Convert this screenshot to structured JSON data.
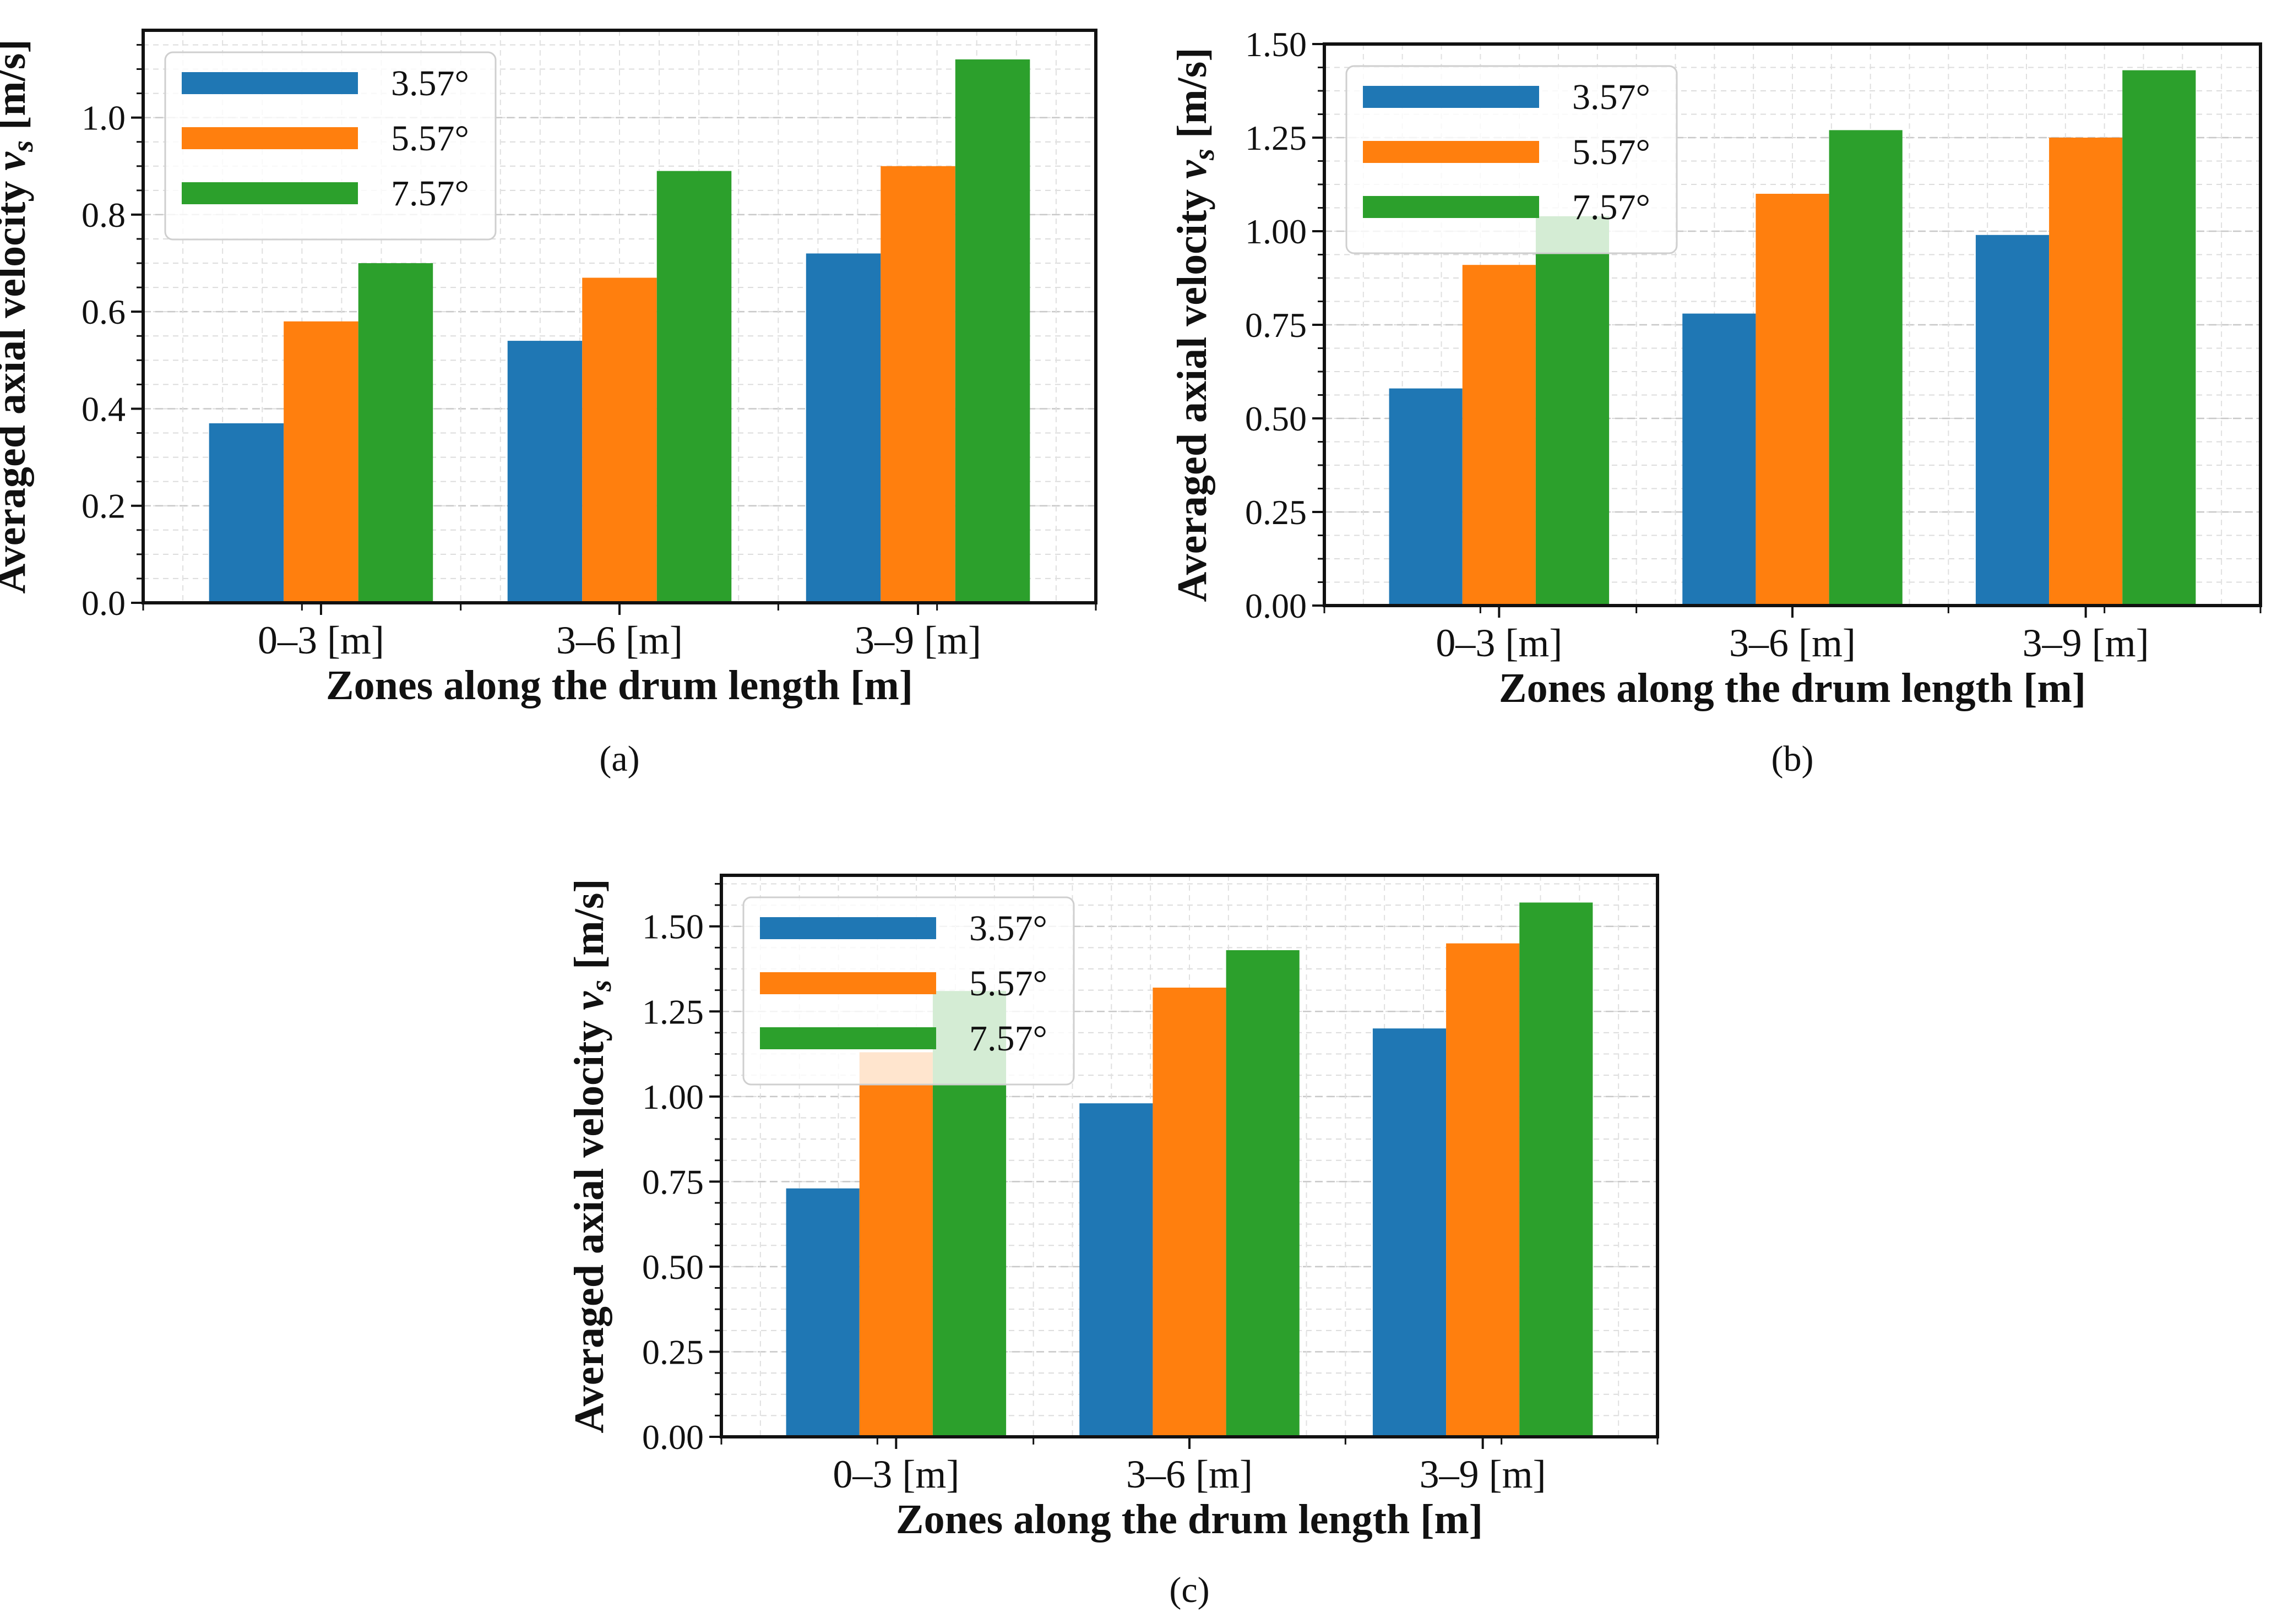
{
  "chart_data": [
    {
      "type": "bar",
      "panel_label": "(a)",
      "xlabel": "Zones along the drum length [m]",
      "ylabel": "Averaged axial velocity v_s [m/s]",
      "categories": [
        "0–3 [m]",
        "3–6 [m]",
        "3–9 [m]"
      ],
      "series": [
        {
          "name": "3.57°",
          "color": "#1f77b4",
          "values": [
            0.37,
            0.54,
            0.72
          ]
        },
        {
          "name": "5.57°",
          "color": "#ff7f0e",
          "values": [
            0.58,
            0.67,
            0.9
          ]
        },
        {
          "name": "7.57°",
          "color": "#2ca02c",
          "values": [
            0.7,
            0.89,
            1.12
          ]
        }
      ],
      "ylim": [
        0,
        1.18
      ],
      "yticks": [
        0.0,
        0.2,
        0.4,
        0.6,
        0.8,
        1.0
      ],
      "ytick_labels": [
        "0.0",
        "0.2",
        "0.4",
        "0.6",
        "0.8",
        "1.0"
      ],
      "legend_position": "top-left",
      "grid": true
    },
    {
      "type": "bar",
      "panel_label": "(b)",
      "xlabel": "Zones along the drum length [m]",
      "ylabel": "Averaged axial velocity v_s [m/s]",
      "categories": [
        "0–3 [m]",
        "3–6 [m]",
        "3–9 [m]"
      ],
      "series": [
        {
          "name": "3.57°",
          "color": "#1f77b4",
          "values": [
            0.58,
            0.78,
            0.99
          ]
        },
        {
          "name": "5.57°",
          "color": "#ff7f0e",
          "values": [
            0.91,
            1.1,
            1.25
          ]
        },
        {
          "name": "7.57°",
          "color": "#2ca02c",
          "values": [
            1.04,
            1.27,
            1.43
          ]
        }
      ],
      "ylim": [
        0,
        1.5
      ],
      "yticks": [
        0.0,
        0.25,
        0.5,
        0.75,
        1.0,
        1.25,
        1.5
      ],
      "ytick_labels": [
        "0.00",
        "0.25",
        "0.50",
        "0.75",
        "1.00",
        "1.25",
        "1.50"
      ],
      "legend_position": "top-left",
      "grid": true
    },
    {
      "type": "bar",
      "panel_label": "(c)",
      "xlabel": "Zones along the drum length [m]",
      "ylabel": "Averaged axial velocity v_s [m/s]",
      "categories": [
        "0–3 [m]",
        "3–6 [m]",
        "3–9 [m]"
      ],
      "series": [
        {
          "name": "3.57°",
          "color": "#1f77b4",
          "values": [
            0.73,
            0.98,
            1.2
          ]
        },
        {
          "name": "5.57°",
          "color": "#ff7f0e",
          "values": [
            1.13,
            1.32,
            1.45
          ]
        },
        {
          "name": "7.57°",
          "color": "#2ca02c",
          "values": [
            1.31,
            1.43,
            1.57
          ]
        }
      ],
      "ylim": [
        0,
        1.65
      ],
      "yticks": [
        0.0,
        0.25,
        0.5,
        0.75,
        1.0,
        1.25,
        1.5
      ],
      "ytick_labels": [
        "0.00",
        "0.25",
        "0.50",
        "0.75",
        "1.00",
        "1.25",
        "1.50"
      ],
      "legend_position": "top-left",
      "grid": true
    }
  ]
}
